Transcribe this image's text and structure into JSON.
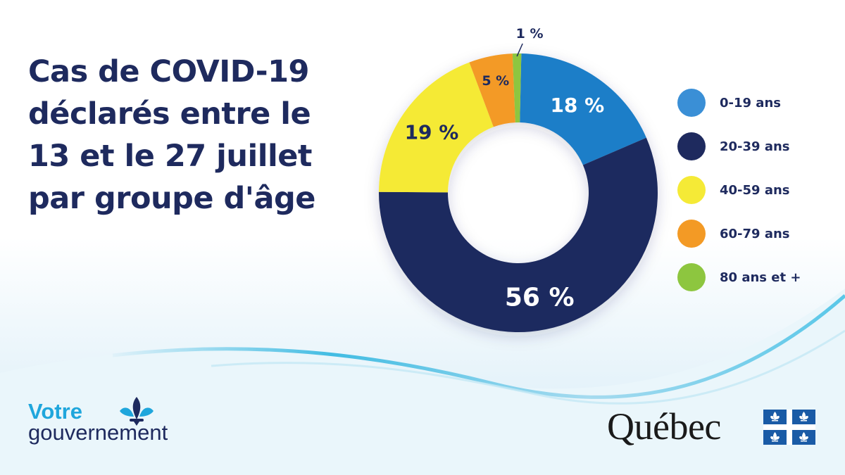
{
  "title_lines": [
    "Cas de COVID-19",
    "déclarés entre le",
    "13 et le 27 juillet",
    "par groupe d'âge"
  ],
  "chart_data": {
    "type": "pie",
    "variant": "donut",
    "categories": [
      "0-19 ans",
      "20-39 ans",
      "40-59 ans",
      "60-79 ans",
      "80 ans et +"
    ],
    "values": [
      18,
      56,
      19,
      5,
      1
    ],
    "labels": [
      "18 %",
      "56 %",
      "19 %",
      "5 %",
      "1 %"
    ],
    "colors": [
      "#1f7ec8",
      "#1e2a5e",
      "#f5ea36",
      "#f39a25",
      "#8dc63f"
    ],
    "legend_colors": [
      "#3a8fd6",
      "#1e2a5e",
      "#f5ea36",
      "#f39a25",
      "#8dc63f"
    ],
    "label_colors": [
      "#ffffff",
      "#ffffff",
      "#1e2a5e",
      "#1e2a5e",
      "#1e2a5e"
    ],
    "legend_position": "right"
  },
  "branding": {
    "votre_line1": "Votre",
    "votre_line2": "gouvernement",
    "quebec_word": "Québec"
  },
  "colors": {
    "title": "#1e2a5e",
    "accent": "#1fa6dc",
    "flag_blue": "#1a5ba6"
  }
}
